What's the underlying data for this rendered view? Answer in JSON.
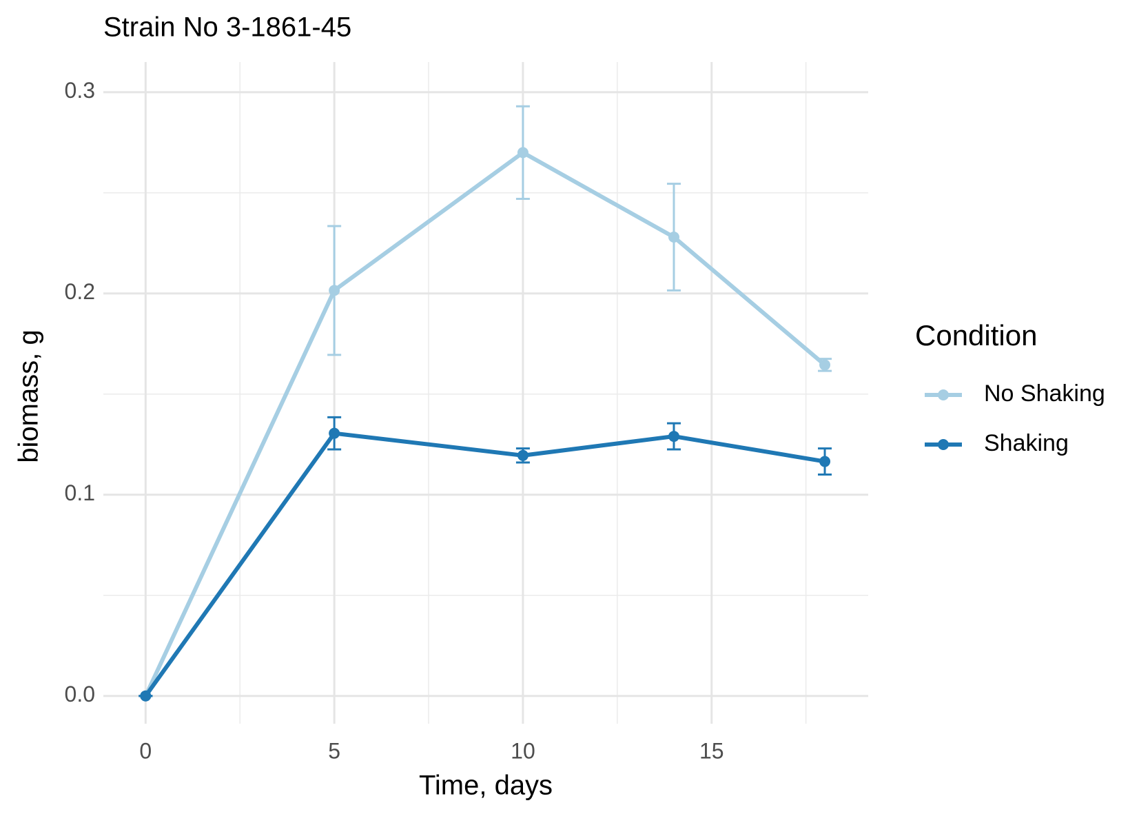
{
  "chart_data": {
    "type": "line",
    "title": "Strain No  3-1861-45",
    "x_label": "Time, days",
    "y_label": "biomass, g",
    "legend_title": "Condition",
    "x": [
      0,
      5,
      10,
      14,
      18
    ],
    "series": [
      {
        "name": "No Shaking",
        "color": "#a6cee3",
        "values": [
          0,
          0.2015,
          0.27,
          0.228,
          0.1645
        ],
        "errors": [
          0,
          0.032,
          0.023,
          0.0265,
          0.003
        ]
      },
      {
        "name": "Shaking",
        "color": "#1f78b4",
        "values": [
          0,
          0.1305,
          0.1195,
          0.129,
          0.1165
        ],
        "errors": [
          0,
          0.008,
          0.0035,
          0.0065,
          0.0065
        ]
      }
    ],
    "xlim": [
      -1.12,
      19.15
    ],
    "ylim": [
      -0.0138,
      0.315
    ],
    "xticks": [
      0,
      5,
      10,
      15
    ],
    "yticks": [
      {
        "value": 0,
        "label": "0.0"
      },
      0.1,
      0.2,
      0.3
    ],
    "x_minor_grid": [
      2.5,
      7.5,
      12.5,
      17.5
    ],
    "y_minor_grid": [
      0.05,
      0.15,
      0.25
    ],
    "grid": true,
    "legend": "right"
  }
}
